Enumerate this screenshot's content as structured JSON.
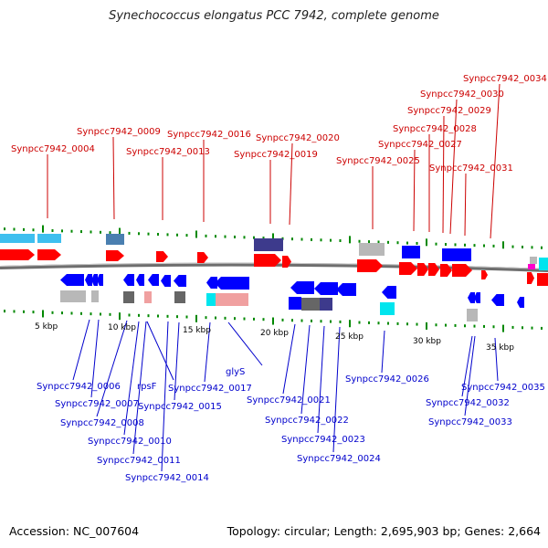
{
  "title": "Synechococcus elongatus PCC 7942, complete genome",
  "accession_text": "Accession: NC_007604",
  "summary_text": "Topology: circular; Length: 2,695,903 bp; Genes: 2,664",
  "colors": {
    "forward_label": "#cc0000",
    "reverse_label": "#0000cc",
    "cds_forward": "#ff0000",
    "cds_reverse": "#0000ff",
    "gene_light_blue": "#3fbfef",
    "gene_steel_blue": "#4a7fb0",
    "gene_dark_blue": "#3d3a8c",
    "gene_gray": "#b8b8b8",
    "gene_dark_gray": "#666666",
    "gene_pink": "#f0a0a0",
    "gene_cyan": "#00e5ee",
    "gene_magenta": "#ff00cc",
    "tick_green": "#008800",
    "backbone": "#777777"
  },
  "scale_labels": [
    "5 kbp",
    "10 kbp",
    "15 kbp",
    "20 kbp",
    "25 kbp",
    "30 kbp",
    "35 kbp"
  ],
  "forward_labels": [
    "Synpcc7942_0004",
    "Synpcc7942_0009",
    "Synpcc7942_0013",
    "Synpcc7942_0016",
    "Synpcc7942_0019",
    "Synpcc7942_0020",
    "Synpcc7942_0025",
    "Synpcc7942_0027",
    "Synpcc7942_0028",
    "Synpcc7942_0029",
    "Synpcc7942_0030",
    "Synpcc7942_0031",
    "Synpcc7942_0034"
  ],
  "reverse_labels": [
    "Synpcc7942_0006",
    "Synpcc7942_0007",
    "Synpcc7942_0008",
    "Synpcc7942_0010",
    "Synpcc7942_0011",
    "Synpcc7942_0014",
    "rpsF",
    "Synpcc7942_0015",
    "Synpcc7942_0017",
    "glyS",
    "Synpcc7942_0021",
    "Synpcc7942_0022",
    "Synpcc7942_0023",
    "Synpcc7942_0024",
    "Synpcc7942_0026",
    "Synpcc7942_0032",
    "Synpcc7942_0033",
    "Synpcc7942_0035"
  ]
}
